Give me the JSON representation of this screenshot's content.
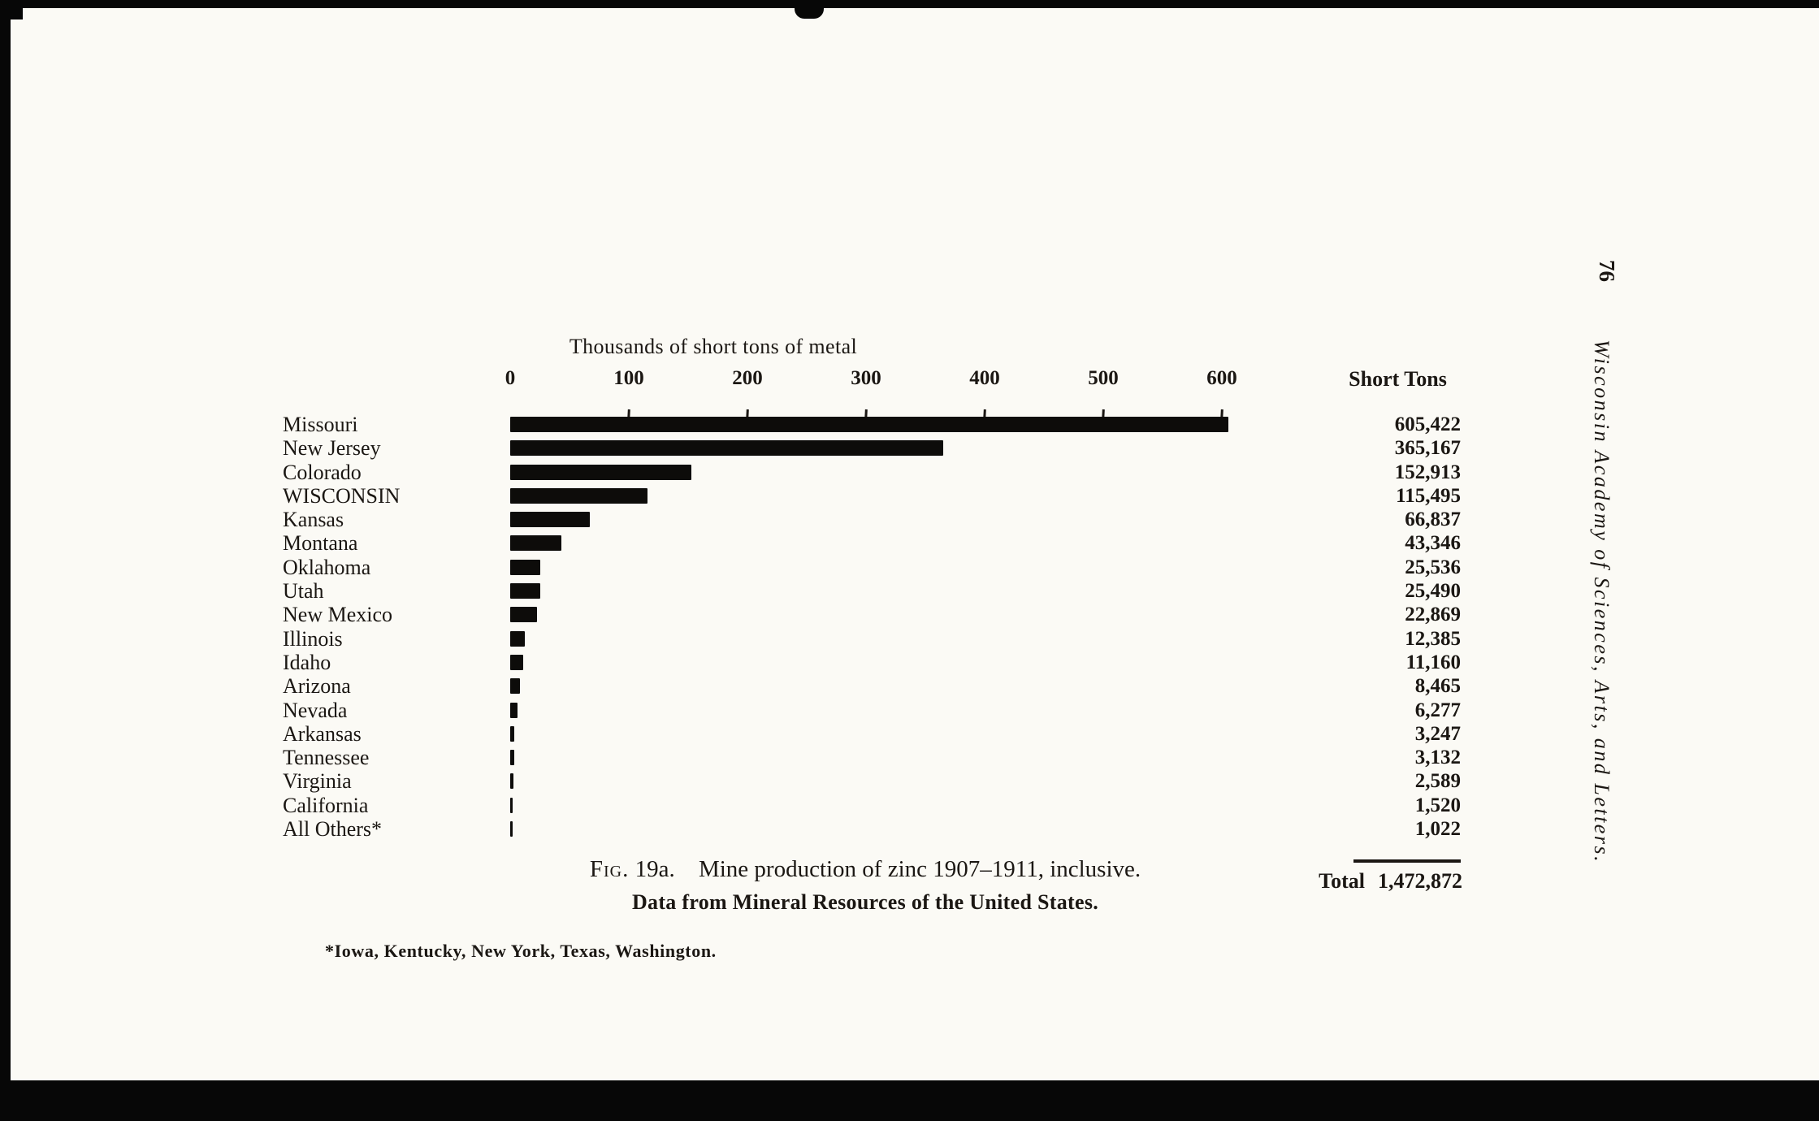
{
  "page": {
    "page_number": "76",
    "journal_title": "Wisconsin Academy of Sciences, Arts, and Letters."
  },
  "chart": {
    "axis_title": "Thousands of short tons of metal",
    "value_column_header": "Short Tons",
    "total_label": "Total",
    "total_value": "1,472,872"
  },
  "caption": {
    "figure_label": "Fig.",
    "figure_number": "19a.",
    "title": "Mine production of zinc 1907–1911, inclusive.",
    "source": "Data from Mineral Resources of the United States.",
    "footnote": "*Iowa, Kentucky, New York, Texas, Washington."
  },
  "chart_data": {
    "type": "bar",
    "orientation": "horizontal",
    "title": "Mine production of zinc 1907–1911, inclusive",
    "xlabel": "Thousands of short tons of metal",
    "ylabel": "",
    "xlim": [
      0,
      600
    ],
    "x_ticks": [
      0,
      100,
      200,
      300,
      400,
      500,
      600
    ],
    "grid": false,
    "legend": "none",
    "categories": [
      "Missouri",
      "New Jersey",
      "Colorado",
      "WISCONSIN",
      "Kansas",
      "Montana",
      "Oklahoma",
      "Utah",
      "New Mexico",
      "Illinois",
      "Idaho",
      "Arizona",
      "Nevada",
      "Arkansas",
      "Tennessee",
      "Virginia",
      "California",
      "All Others*"
    ],
    "values_short_tons": [
      605422,
      365167,
      152913,
      115495,
      66837,
      43346,
      25536,
      25490,
      22869,
      12385,
      11160,
      8465,
      6277,
      3247,
      3132,
      2589,
      1520,
      1022
    ],
    "value_labels": [
      "605,422",
      "365,167",
      "152,913",
      "115,495",
      "66,837",
      "43,346",
      "25,536",
      "25,490",
      "22,869",
      "12,385",
      "11,160",
      "8,465",
      "6,277",
      "3,247",
      "3,132",
      "2,589",
      "1,520",
      "1,022"
    ],
    "total_short_tons": 1472872,
    "bar_color": "#0d0c0a"
  },
  "colors": {
    "paper": "#fbfaf5",
    "ink": "#1b1713",
    "scan_edge": "#070707"
  }
}
